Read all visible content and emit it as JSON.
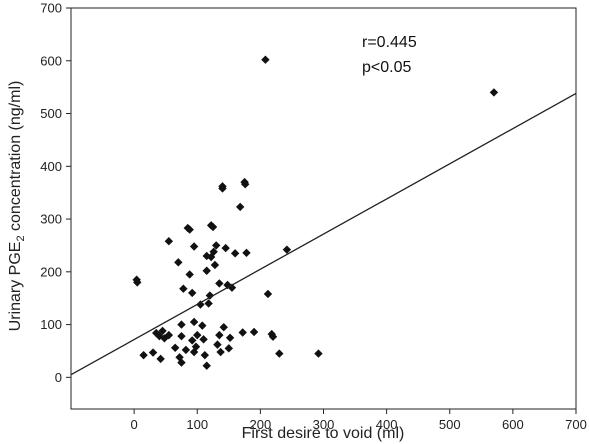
{
  "chart_data": {
    "type": "scatter",
    "xlabel": "First desire to void (ml)",
    "ylabel_prefix": "Urinary PGE",
    "ylabel_subscript": "2",
    "ylabel_suffix": " concentration (ng/ml)",
    "xlim": [
      -100,
      700
    ],
    "ylim": [
      -60,
      700
    ],
    "xticks": [
      0,
      100,
      200,
      300,
      400,
      500,
      600,
      700
    ],
    "yticks": [
      0,
      100,
      200,
      300,
      400,
      500,
      600,
      700
    ],
    "grid": false,
    "legend": "none",
    "annotations": [
      "r=0.445",
      "p<0.05"
    ],
    "marker_color": "#111111",
    "trendline": {
      "x": [
        -100,
        700
      ],
      "y": [
        5,
        538
      ]
    },
    "points": [
      {
        "x": 4,
        "y": 185
      },
      {
        "x": 5,
        "y": 180
      },
      {
        "x": 15,
        "y": 42
      },
      {
        "x": 30,
        "y": 47
      },
      {
        "x": 35,
        "y": 84
      },
      {
        "x": 40,
        "y": 78
      },
      {
        "x": 42,
        "y": 35
      },
      {
        "x": 45,
        "y": 88
      },
      {
        "x": 48,
        "y": 74
      },
      {
        "x": 55,
        "y": 258
      },
      {
        "x": 55,
        "y": 80
      },
      {
        "x": 65,
        "y": 56
      },
      {
        "x": 70,
        "y": 218
      },
      {
        "x": 72,
        "y": 38
      },
      {
        "x": 75,
        "y": 100
      },
      {
        "x": 75,
        "y": 78
      },
      {
        "x": 75,
        "y": 28
      },
      {
        "x": 78,
        "y": 168
      },
      {
        "x": 82,
        "y": 52
      },
      {
        "x": 85,
        "y": 283
      },
      {
        "x": 88,
        "y": 280
      },
      {
        "x": 88,
        "y": 195
      },
      {
        "x": 92,
        "y": 160
      },
      {
        "x": 92,
        "y": 70
      },
      {
        "x": 95,
        "y": 248
      },
      {
        "x": 95,
        "y": 105
      },
      {
        "x": 95,
        "y": 48
      },
      {
        "x": 98,
        "y": 58
      },
      {
        "x": 100,
        "y": 80
      },
      {
        "x": 105,
        "y": 138
      },
      {
        "x": 108,
        "y": 98
      },
      {
        "x": 110,
        "y": 72
      },
      {
        "x": 112,
        "y": 42
      },
      {
        "x": 115,
        "y": 230
      },
      {
        "x": 115,
        "y": 202
      },
      {
        "x": 115,
        "y": 22
      },
      {
        "x": 118,
        "y": 140
      },
      {
        "x": 120,
        "y": 155
      },
      {
        "x": 122,
        "y": 288
      },
      {
        "x": 122,
        "y": 228
      },
      {
        "x": 125,
        "y": 285
      },
      {
        "x": 126,
        "y": 238
      },
      {
        "x": 128,
        "y": 213
      },
      {
        "x": 130,
        "y": 250
      },
      {
        "x": 132,
        "y": 62
      },
      {
        "x": 135,
        "y": 178
      },
      {
        "x": 135,
        "y": 80
      },
      {
        "x": 137,
        "y": 48
      },
      {
        "x": 140,
        "y": 362
      },
      {
        "x": 140,
        "y": 358
      },
      {
        "x": 142,
        "y": 95
      },
      {
        "x": 145,
        "y": 245
      },
      {
        "x": 148,
        "y": 175
      },
      {
        "x": 150,
        "y": 55
      },
      {
        "x": 152,
        "y": 75
      },
      {
        "x": 155,
        "y": 170
      },
      {
        "x": 160,
        "y": 235
      },
      {
        "x": 168,
        "y": 323
      },
      {
        "x": 172,
        "y": 85
      },
      {
        "x": 175,
        "y": 370
      },
      {
        "x": 176,
        "y": 366
      },
      {
        "x": 178,
        "y": 236
      },
      {
        "x": 190,
        "y": 86
      },
      {
        "x": 208,
        "y": 602
      },
      {
        "x": 212,
        "y": 158
      },
      {
        "x": 218,
        "y": 82
      },
      {
        "x": 220,
        "y": 77
      },
      {
        "x": 230,
        "y": 45
      },
      {
        "x": 242,
        "y": 242
      },
      {
        "x": 292,
        "y": 45
      },
      {
        "x": 570,
        "y": 540
      }
    ]
  }
}
